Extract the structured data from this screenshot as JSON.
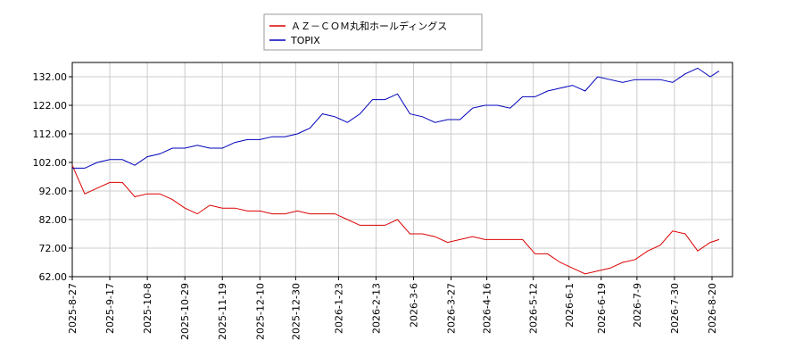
{
  "chart_data": {
    "type": "line",
    "x": [
      "2025-8-27",
      "2025-9-3",
      "2025-9-10",
      "2025-9-17",
      "2025-9-24",
      "2025-10-1",
      "2025-10-8",
      "2025-10-15",
      "2025-10-22",
      "2025-10-29",
      "2025-11-5",
      "2025-11-12",
      "2025-11-19",
      "2025-11-26",
      "2025-12-3",
      "2025-12-10",
      "2025-12-17",
      "2025-12-24",
      "2025-12-31",
      "2026-1-7",
      "2026-1-14",
      "2026-1-21",
      "2026-1-28",
      "2026-2-4",
      "2026-2-11",
      "2026-2-18",
      "2026-2-25",
      "2026-3-4",
      "2026-3-11",
      "2026-3-18",
      "2026-3-25",
      "2026-4-1",
      "2026-4-8",
      "2026-4-15",
      "2026-4-22",
      "2026-4-29",
      "2026-5-6",
      "2026-5-13",
      "2026-5-20",
      "2026-5-27",
      "2026-6-3",
      "2026-6-10",
      "2026-6-17",
      "2026-6-24",
      "2026-7-1",
      "2026-7-8",
      "2026-7-15",
      "2026-7-22",
      "2026-7-29",
      "2026-8-5",
      "2026-8-12",
      "2026-8-19",
      "2026-8-24"
    ],
    "series": [
      {
        "name": "ＡＺ－ＣＯＭ丸和ホールディングス",
        "color": "#dd0000",
        "values": [
          101,
          91,
          93,
          95,
          95,
          90,
          91,
          91,
          89,
          86,
          84,
          87,
          86,
          86,
          85,
          85,
          84,
          84,
          85,
          84,
          84,
          84,
          82,
          80,
          80,
          80,
          82,
          77,
          77,
          76,
          74,
          75,
          76,
          75,
          75,
          75,
          75,
          70,
          70,
          67,
          65,
          63,
          64,
          65,
          67,
          68,
          71,
          73,
          78,
          77,
          71,
          74,
          75
        ]
      },
      {
        "name": "TOPIX",
        "color": "#0000bb",
        "values": [
          100,
          100,
          102,
          103,
          103,
          101,
          104,
          105,
          107,
          107,
          108,
          107,
          107,
          109,
          110,
          110,
          111,
          111,
          112,
          114,
          119,
          118,
          116,
          119,
          124,
          124,
          126,
          119,
          118,
          116,
          117,
          117,
          121,
          122,
          122,
          121,
          125,
          125,
          127,
          128,
          129,
          127,
          132,
          131,
          130,
          131,
          131,
          131,
          130,
          133,
          135,
          132,
          134
        ]
      }
    ],
    "ylim": [
      62,
      137
    ],
    "yticks": [
      {
        "value": 62,
        "label": "62.00"
      },
      {
        "value": 72,
        "label": "72.00"
      },
      {
        "value": 82,
        "label": "82.00"
      },
      {
        "value": 92,
        "label": "92.00"
      },
      {
        "value": 102,
        "label": "102.00"
      },
      {
        "value": 112,
        "label": "112.00"
      },
      {
        "value": 122,
        "label": "122.00"
      },
      {
        "value": 132,
        "label": "132.00"
      }
    ],
    "xticks": [
      "2025-8-27",
      "2025-9-17",
      "2025-10-8",
      "2025-10-29",
      "2025-11-19",
      "2025-12-10",
      "2025-12-30",
      "2026-1-23",
      "2026-2-13",
      "2026-3-6",
      "2026-3-27",
      "2026-4-16",
      "2026-5-12",
      "2026-6-1",
      "2026-6-19",
      "2026-7-9",
      "2026-7-30",
      "2026-8-20"
    ],
    "grid": true
  }
}
